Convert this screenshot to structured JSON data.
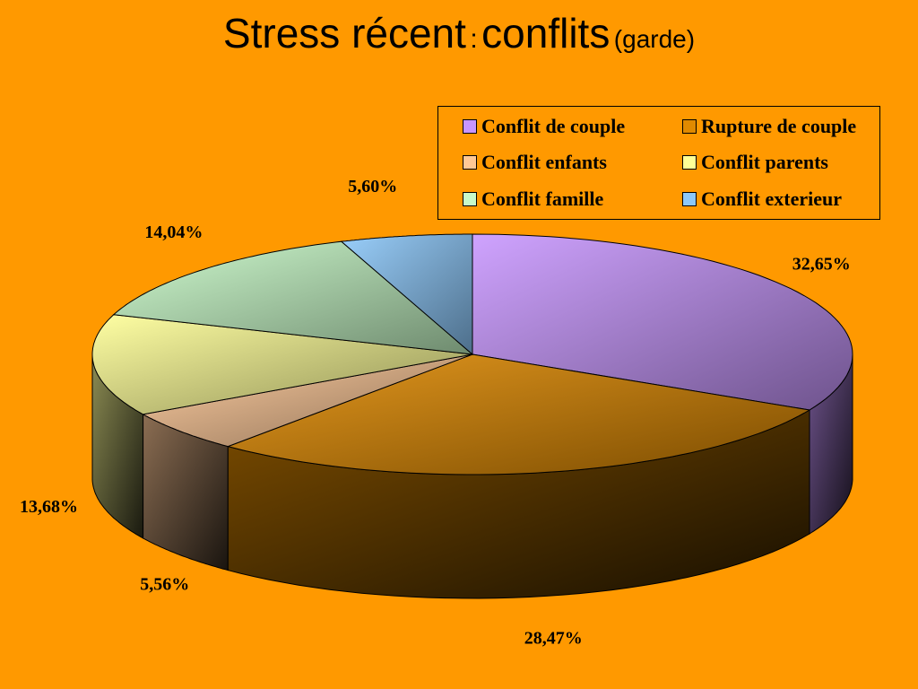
{
  "title": {
    "main": "Stress récent",
    "colon": ":",
    "main2": "conflits",
    "sub": "(garde)"
  },
  "chart_data": {
    "type": "pie",
    "style": "3d",
    "legend_position": "top-right",
    "slices": [
      {
        "name": "Conflit de couple",
        "value": 32.65,
        "label": "32,65%",
        "color": "#C896FF"
      },
      {
        "name": "Rupture de couple",
        "value": 28.47,
        "label": "28,47%",
        "color": "#E08A00"
      },
      {
        "name": "Conflit enfants",
        "value": 5.56,
        "label": "5,56%",
        "color": "#FFC896"
      },
      {
        "name": "Conflit parents",
        "value": 13.68,
        "label": "13,68%",
        "color": "#FFFF96"
      },
      {
        "name": "Conflit famille",
        "value": 14.04,
        "label": "14,04%",
        "color": "#C8FAC8"
      },
      {
        "name": "Conflit exterieur",
        "value": 5.6,
        "label": "5,60%",
        "color": "#8CC8FA"
      }
    ]
  }
}
